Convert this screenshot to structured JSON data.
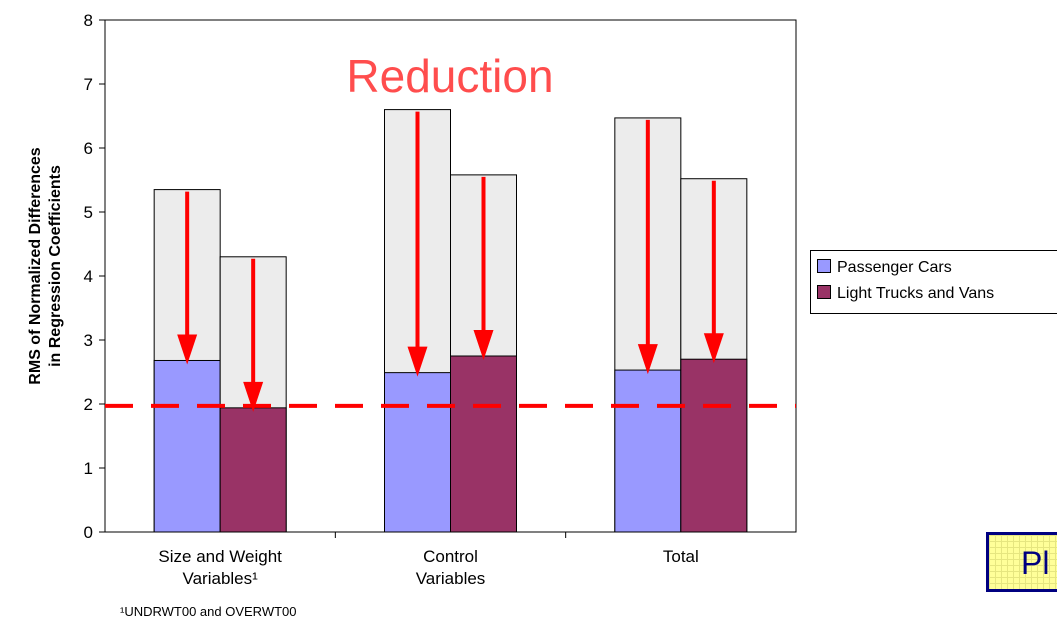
{
  "chart_data": {
    "type": "bar",
    "ylabel_lines": [
      "RMS of Normalized Differences",
      "in Regression Coefficients"
    ],
    "ylim": [
      0,
      8
    ],
    "yticks": [
      0,
      1,
      2,
      3,
      4,
      5,
      6,
      7,
      8
    ],
    "categories": [
      [
        "Size and Weight",
        "Variables¹"
      ],
      [
        "Control",
        "Variables"
      ],
      [
        "Total"
      ]
    ],
    "series": [
      {
        "name": "Passenger Cars",
        "color": "#9999ff",
        "before": [
          5.35,
          6.6,
          6.47
        ],
        "after": [
          2.68,
          2.49,
          2.53
        ]
      },
      {
        "name": "Light Trucks and Vans",
        "color": "#993366",
        "before": [
          4.3,
          5.58,
          5.52
        ],
        "after": [
          1.94,
          2.75,
          2.7
        ]
      }
    ],
    "before_color": "#ececec",
    "reference_line": {
      "y": 1.97,
      "color": "#ff0000",
      "style": "dashed"
    },
    "annotation": "Reduction",
    "footnote": "¹UNDRWT00 and OVERWT00",
    "legend_position": "right",
    "badge_text": "Pl"
  }
}
